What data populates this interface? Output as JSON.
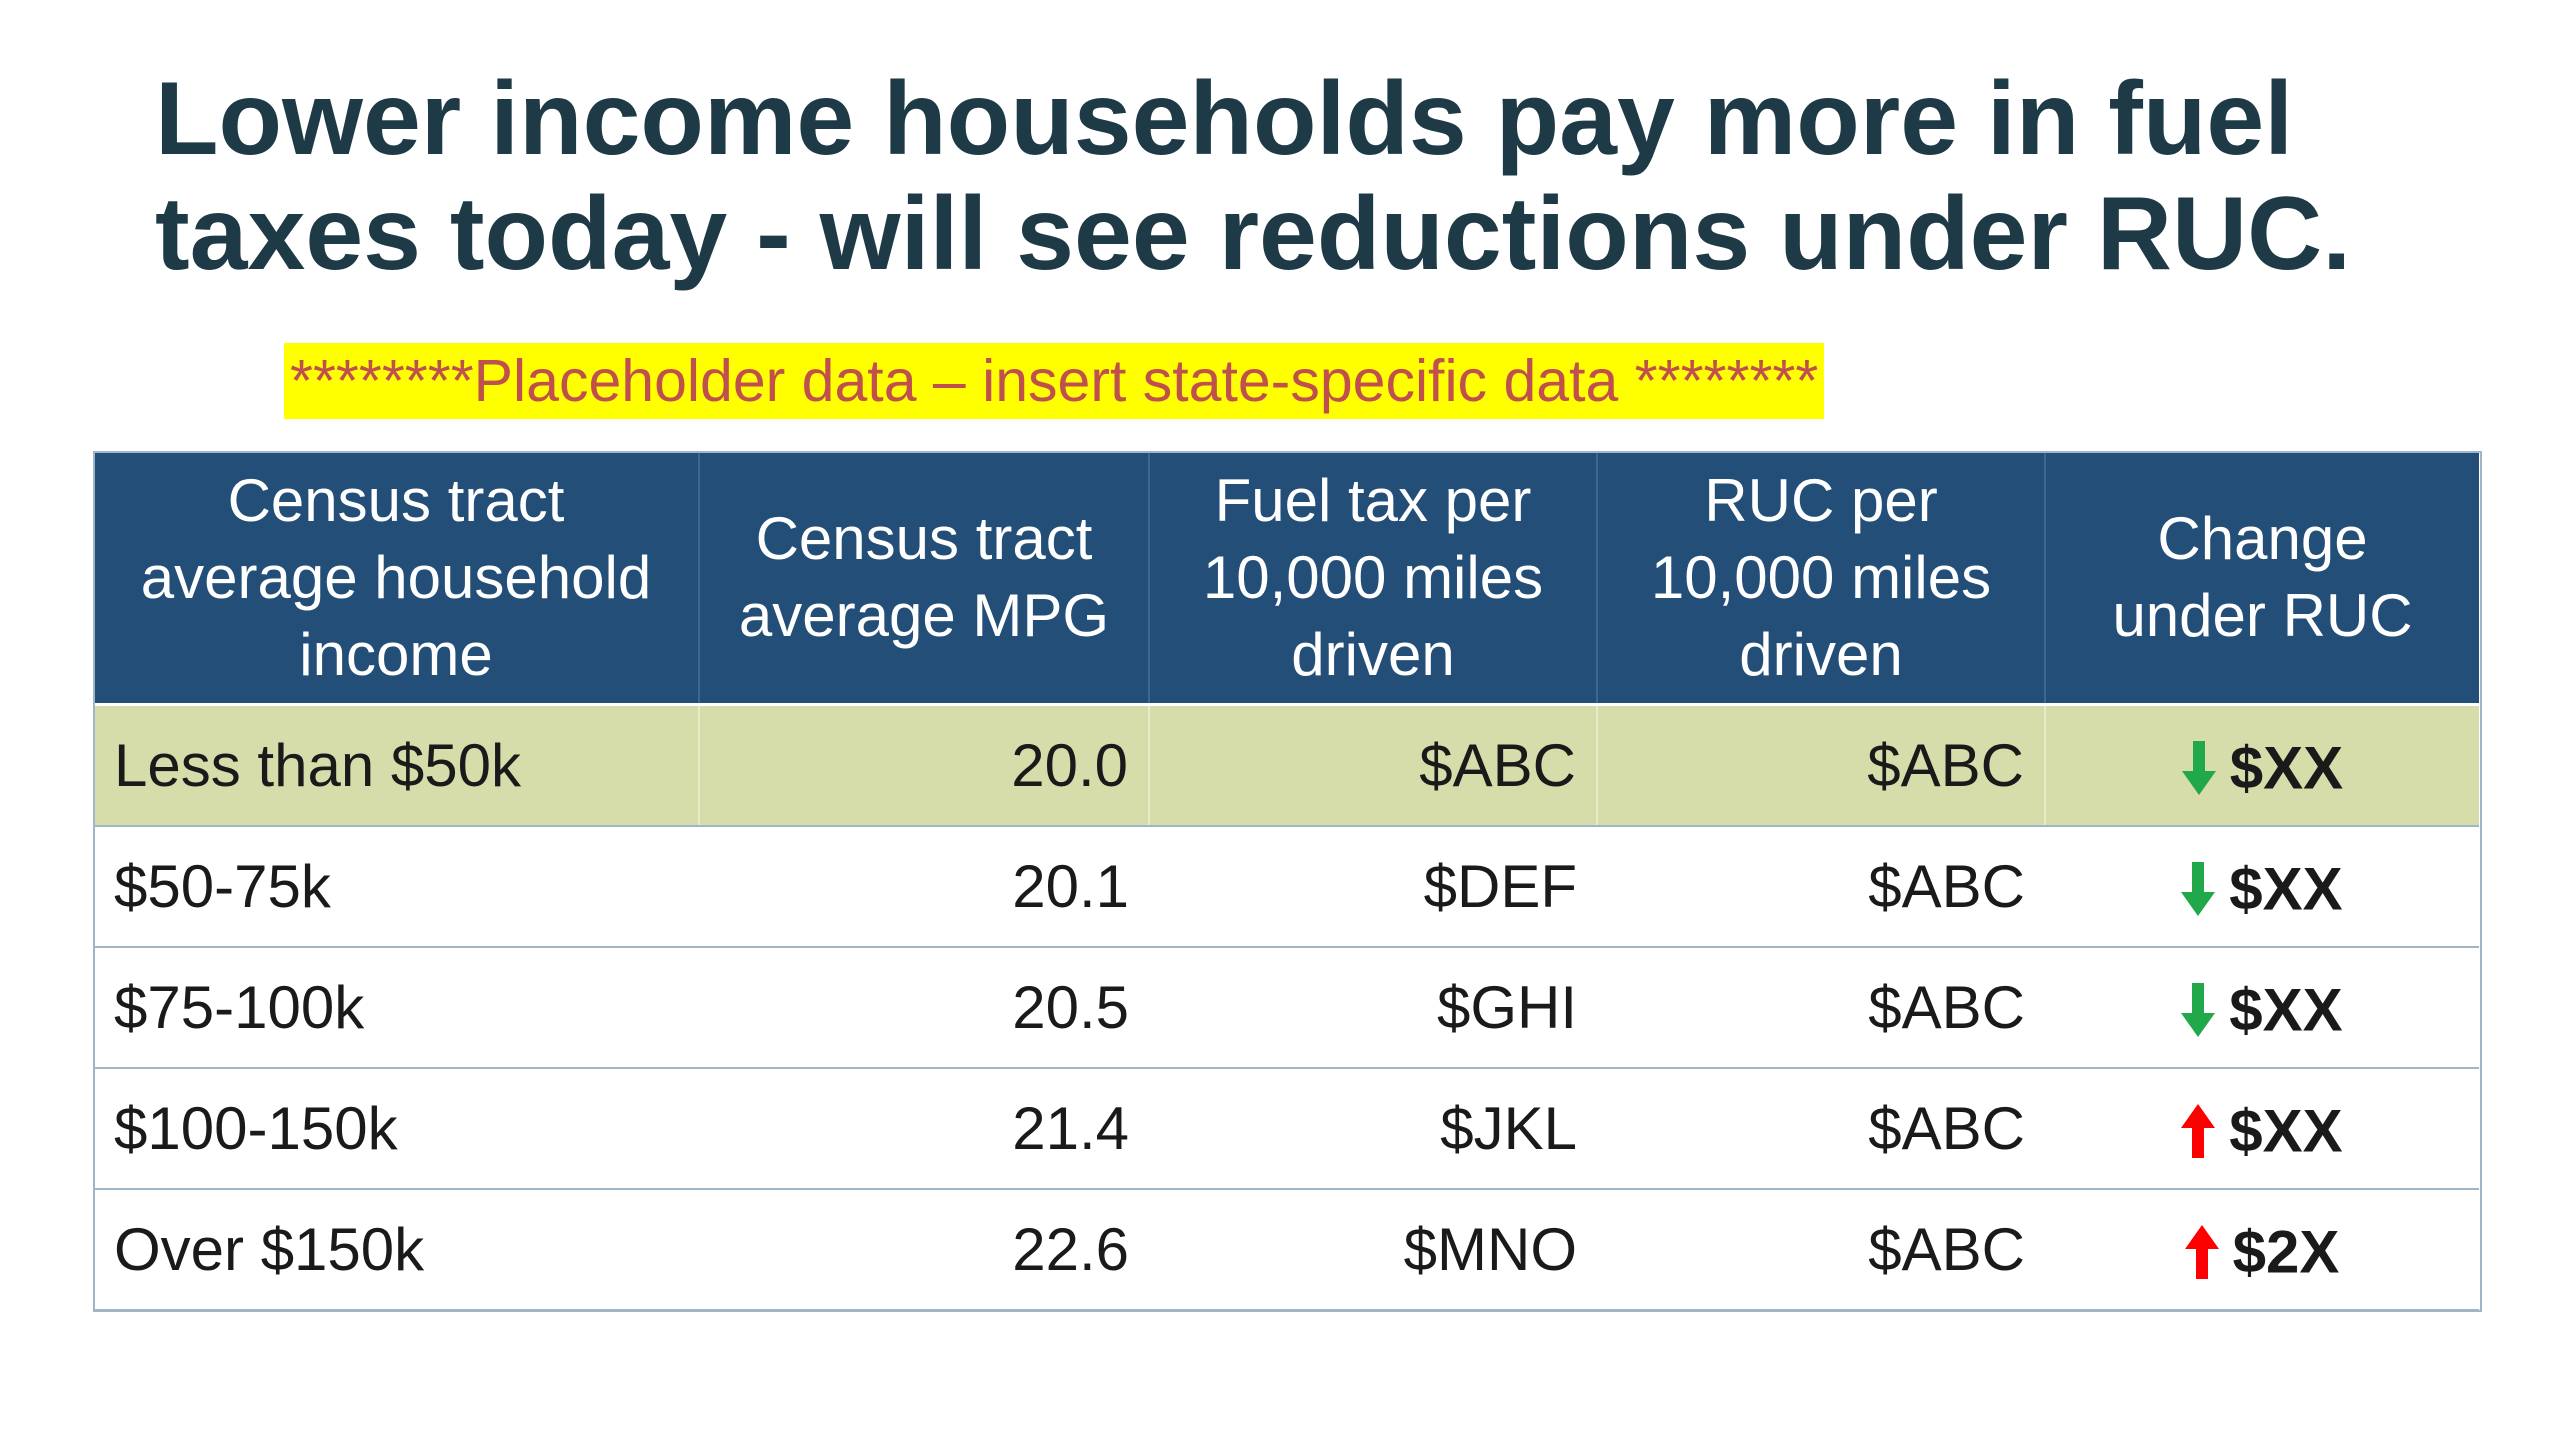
{
  "slide": {
    "title_line1": "Lower income households pay more in fuel",
    "title_line2": "taxes today - will see reductions under RUC.",
    "placeholder_note": "********Placeholder data – insert state-specific data ********"
  },
  "table": {
    "headers": [
      [
        "Census tract",
        "average household",
        "income"
      ],
      [
        "Census tract",
        "average MPG"
      ],
      [
        "Fuel tax per",
        "10,000 miles",
        "driven"
      ],
      [
        "RUC per",
        "10,000 miles",
        "driven"
      ],
      [
        "Change",
        "under RUC"
      ]
    ],
    "rows": [
      {
        "income": "Less than $50k",
        "mpg": "20.0",
        "fuel_tax": "$ABC",
        "ruc": "$ABC",
        "change_direction": "down",
        "change": "$XX",
        "highlighted": true
      },
      {
        "income": "$50-75k",
        "mpg": "20.1",
        "fuel_tax": "$DEF",
        "ruc": "$ABC",
        "change_direction": "down",
        "change": "$XX",
        "highlighted": false
      },
      {
        "income": "$75-100k",
        "mpg": "20.5",
        "fuel_tax": "$GHI",
        "ruc": "$ABC",
        "change_direction": "down",
        "change": "$XX",
        "highlighted": false
      },
      {
        "income": "$100-150k",
        "mpg": "21.4",
        "fuel_tax": "$JKL",
        "ruc": "$ABC",
        "change_direction": "up",
        "change": "$XX",
        "highlighted": false
      },
      {
        "income": "Over $150k",
        "mpg": "22.6",
        "fuel_tax": "$MNO",
        "ruc": "$ABC",
        "change_direction": "up",
        "change": "$2X",
        "highlighted": false
      }
    ]
  },
  "colors": {
    "title": "#1f3a47",
    "header_bg": "#234e77",
    "highlight_row_bg": "#d6dcaa",
    "placeholder_bg": "#ffff00",
    "placeholder_text": "#c0504d",
    "decrease": "#21a84a",
    "increase": "#ff0000"
  },
  "icons": {
    "down": "arrow-down-icon",
    "up": "arrow-up-icon"
  }
}
